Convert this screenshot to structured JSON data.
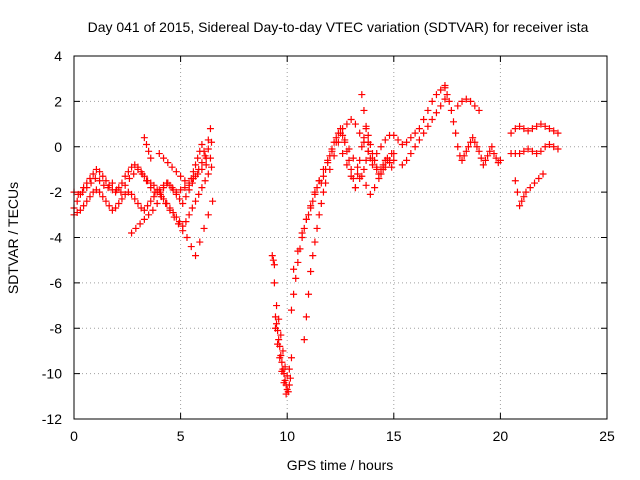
{
  "chart_data": {
    "type": "scatter",
    "title": "Day 041 of 2015, Sidereal Day-to-day VTEC variation (SDTVAR) for receiver ista",
    "xlabel": "GPS time / hours",
    "ylabel": "SDTVAR / TECUs",
    "xlim": [
      0,
      25
    ],
    "ylim": [
      -12,
      4
    ],
    "xticks": [
      0,
      5,
      10,
      15,
      20,
      25
    ],
    "yticks": [
      -12,
      -10,
      -8,
      -6,
      -4,
      -2,
      0,
      2,
      4
    ],
    "grid": true,
    "marker": "+",
    "color": "#ff0000",
    "series": [
      {
        "name": "SDTVAR",
        "x": [
          0.0,
          0.15,
          0.3,
          0.45,
          0.6,
          0.75,
          0.9,
          1.05,
          1.2,
          1.35,
          1.5,
          1.65,
          1.8,
          1.95,
          2.1,
          2.25,
          2.4,
          2.55,
          2.7,
          2.85,
          3.0,
          3.15,
          3.3,
          3.45,
          3.6,
          3.75,
          3.9,
          4.05,
          4.2,
          4.35,
          4.5,
          4.65,
          4.8,
          4.95,
          5.1,
          5.25,
          5.4,
          5.55,
          5.7,
          5.85,
          6.0,
          6.15,
          6.3,
          6.45,
          0.0,
          0.15,
          0.3,
          0.45,
          0.6,
          0.75,
          0.9,
          1.05,
          1.2,
          1.35,
          1.5,
          1.65,
          1.8,
          1.95,
          2.1,
          2.25,
          2.4,
          2.55,
          2.7,
          2.85,
          3.0,
          3.15,
          3.3,
          3.45,
          3.6,
          3.75,
          3.9,
          4.05,
          4.2,
          4.35,
          4.5,
          4.65,
          4.8,
          4.95,
          5.1,
          5.25,
          5.4,
          5.55,
          5.7,
          5.85,
          6.0,
          6.15,
          6.3,
          6.45,
          0.0,
          0.2,
          0.4,
          0.6,
          0.8,
          1.0,
          1.2,
          1.4,
          1.6,
          1.8,
          2.0,
          2.2,
          2.4,
          2.6,
          2.8,
          3.0,
          3.2,
          3.4,
          3.6,
          3.8,
          4.0,
          4.2,
          4.4,
          4.6,
          4.8,
          5.0,
          5.2,
          5.4,
          5.6,
          5.8,
          6.0,
          6.2,
          6.4,
          2.7,
          2.9,
          3.1,
          3.3,
          3.5,
          3.7,
          3.9,
          4.1,
          4.3,
          4.5,
          4.7,
          4.9,
          5.1,
          5.3,
          5.5,
          5.7,
          5.9,
          6.1,
          6.3,
          6.5,
          3.3,
          3.4,
          3.5,
          3.6,
          4.0,
          4.2,
          4.4,
          4.6,
          4.8,
          5.0,
          5.2,
          5.4,
          5.5,
          5.6,
          5.7,
          5.8,
          5.9,
          6.0,
          6.1,
          6.2,
          6.3,
          6.4,
          9.3,
          9.4,
          9.5,
          9.6,
          9.7,
          9.8,
          9.9,
          10.0,
          10.1,
          9.35,
          9.45,
          9.55,
          9.65,
          9.75,
          9.85,
          9.95,
          10.05,
          10.15,
          9.4,
          9.5,
          9.6,
          9.7,
          9.8,
          9.9,
          10.0,
          10.1,
          10.2,
          9.45,
          9.55,
          9.65,
          9.75,
          9.85,
          9.95,
          10.2,
          10.3,
          10.4,
          10.5,
          10.6,
          10.7,
          10.8,
          10.9,
          11.0,
          11.1,
          11.2,
          11.3,
          11.4,
          11.5,
          11.6,
          11.7,
          11.8,
          11.9,
          12.0,
          12.1,
          12.2,
          12.3,
          12.4,
          12.5,
          12.6,
          12.7,
          12.8,
          12.9,
          13.0,
          13.1,
          13.2,
          13.3,
          13.4,
          13.5,
          13.6,
          13.7,
          13.8,
          13.9,
          14.0,
          14.1,
          14.2,
          14.3,
          14.4,
          14.5,
          14.6,
          14.7,
          14.8,
          14.9,
          15.0,
          10.3,
          10.5,
          10.7,
          10.9,
          11.1,
          11.3,
          11.5,
          11.7,
          11.9,
          12.1,
          12.3,
          12.5,
          12.7,
          12.9,
          13.1,
          13.3,
          13.5,
          13.7,
          13.9,
          14.1,
          14.3,
          14.5,
          14.7,
          14.9,
          10.8,
          10.9,
          11.0,
          11.1,
          11.2,
          11.3,
          11.4,
          11.5,
          11.6,
          11.7,
          11.8,
          12.0,
          12.2,
          12.4,
          12.6,
          12.8,
          13.0,
          13.2,
          13.4,
          13.6,
          13.7,
          13.8,
          13.9,
          14.0,
          14.2,
          14.4,
          14.6,
          14.8,
          15.0,
          12.6,
          12.8,
          13.0,
          13.2,
          13.4,
          13.6,
          13.8,
          14.0,
          14.2,
          14.4,
          14.6,
          14.8,
          13.5,
          13.6,
          13.7,
          13.8,
          15.0,
          15.2,
          15.4,
          15.6,
          15.8,
          16.0,
          16.2,
          16.4,
          16.6,
          16.8,
          17.0,
          17.2,
          17.4,
          15.4,
          15.6,
          15.8,
          16.0,
          16.2,
          16.4,
          16.6,
          16.8,
          17.0,
          17.2,
          17.4,
          17.4,
          17.5,
          17.6,
          17.7,
          17.8,
          17.9,
          18.0,
          18.1,
          18.2,
          18.3,
          18.4,
          18.5,
          18.6,
          18.7,
          18.8,
          18.9,
          19.0,
          19.1,
          19.2,
          19.3,
          19.4,
          19.5,
          19.6,
          19.7,
          19.8,
          19.9,
          20.0,
          18.0,
          18.2,
          18.4,
          18.6,
          18.8,
          19.0,
          20.5,
          20.7,
          20.9,
          21.1,
          21.3,
          21.5,
          21.7,
          21.9,
          22.1,
          22.3,
          22.5,
          22.7,
          20.5,
          20.7,
          20.9,
          21.1,
          21.3,
          21.5,
          21.7,
          21.9,
          22.1,
          22.3,
          22.5,
          22.7,
          20.7,
          20.8,
          20.9,
          21.0,
          21.1,
          21.2,
          21.4,
          21.6,
          21.8,
          22.0
        ],
        "y": [
          -2.7,
          -2.4,
          -2.1,
          -1.8,
          -1.6,
          -1.4,
          -1.2,
          -1.0,
          -1.1,
          -1.3,
          -1.5,
          -1.7,
          -1.9,
          -2.0,
          -1.8,
          -1.6,
          -1.3,
          -1.1,
          -0.9,
          -0.8,
          -0.9,
          -1.1,
          -1.3,
          -1.5,
          -1.6,
          -1.7,
          -1.9,
          -2.0,
          -1.8,
          -1.6,
          -1.7,
          -1.9,
          -2.1,
          -2.3,
          -2.5,
          -2.2,
          -1.9,
          -1.6,
          -1.3,
          -1.0,
          -0.7,
          -0.4,
          -0.1,
          0.2,
          -3.0,
          -2.9,
          -2.8,
          -2.6,
          -2.4,
          -2.2,
          -2.0,
          -1.9,
          -2.0,
          -2.2,
          -2.4,
          -2.6,
          -2.8,
          -2.7,
          -2.5,
          -2.3,
          -2.1,
          -2.0,
          -2.1,
          -2.3,
          -2.5,
          -2.7,
          -2.8,
          -2.6,
          -2.4,
          -2.2,
          -2.0,
          -2.1,
          -2.3,
          -2.5,
          -2.7,
          -2.9,
          -3.1,
          -3.3,
          -3.5,
          -3.3,
          -3.0,
          -2.7,
          -2.4,
          -2.1,
          -1.8,
          -1.5,
          -1.2,
          -0.9,
          -2.0,
          -2.1,
          -2.0,
          -1.8,
          -1.6,
          -1.4,
          -1.5,
          -1.7,
          -1.8,
          -1.6,
          -1.9,
          -2.0,
          -1.7,
          -1.4,
          -1.2,
          -1.0,
          -1.2,
          -1.5,
          -1.8,
          -2.0,
          -1.9,
          -1.7,
          -1.6,
          -1.8,
          -2.0,
          -1.9,
          -1.8,
          -1.6,
          -1.4,
          -1.2,
          -1.0,
          -0.8,
          -0.5,
          -3.8,
          -3.6,
          -3.4,
          -3.2,
          -3.0,
          -2.8,
          -2.5,
          -2.2,
          -2.5,
          -2.8,
          -3.1,
          -3.4,
          -3.7,
          -4.0,
          -4.4,
          -4.8,
          -4.2,
          -3.6,
          -3.0,
          -2.4,
          0.4,
          0.1,
          -0.2,
          -0.5,
          -0.3,
          -0.5,
          -0.7,
          -0.9,
          -1.1,
          -1.3,
          -1.5,
          -1.7,
          -1.4,
          -1.1,
          -0.8,
          -0.5,
          -0.2,
          0.1,
          -0.2,
          -0.5,
          0.3,
          0.8,
          -4.8,
          -5.2,
          -7.8,
          -8.5,
          -9.2,
          -9.8,
          -10.3,
          -10.7,
          -10.5,
          -5.0,
          -7.5,
          -8.1,
          -8.8,
          -9.5,
          -10.0,
          -10.5,
          -10.8,
          -10.2,
          -6.0,
          -7.0,
          -7.6,
          -8.3,
          -9.0,
          -9.7,
          -10.1,
          -9.8,
          -9.3,
          -8.0,
          -8.7,
          -9.3,
          -9.9,
          -10.4,
          -10.9,
          -7.2,
          -6.5,
          -5.8,
          -5.1,
          -4.5,
          -4.0,
          -3.6,
          -3.2,
          -3.0,
          -2.7,
          -2.4,
          -2.1,
          -1.8,
          -1.5,
          -1.6,
          -1.3,
          -1.0,
          -0.7,
          -0.4,
          -0.1,
          0.2,
          0.4,
          0.6,
          0.8,
          0.5,
          0.2,
          -0.2,
          -0.6,
          -1.0,
          -1.4,
          -1.8,
          -1.2,
          -0.6,
          0.0,
          0.4,
          0.8,
          0.5,
          0.1,
          -0.3,
          -0.6,
          -0.9,
          -1.2,
          -1.0,
          -0.8,
          -0.6,
          -0.5,
          -0.7,
          -0.9,
          -0.6,
          -5.4,
          -4.6,
          -3.8,
          -3.2,
          -2.6,
          -2.0,
          -1.5,
          -1.0,
          -0.6,
          -0.2,
          0.2,
          0.6,
          0.3,
          -0.1,
          -0.5,
          -0.9,
          -1.3,
          -1.7,
          -2.1,
          -1.8,
          -1.4,
          -1.0,
          -0.6,
          -0.3,
          -8.5,
          -7.5,
          -6.5,
          -5.5,
          -4.8,
          -4.2,
          -3.6,
          -3.0,
          -2.5,
          -2.0,
          -1.6,
          -1.0,
          -0.4,
          0.2,
          -0.3,
          -0.8,
          -1.3,
          -1.8,
          -1.4,
          -1.0,
          -0.6,
          -0.2,
          -0.5,
          -0.8,
          -1.0,
          -1.2,
          -0.9,
          -0.6,
          -0.3,
          0.8,
          1.0,
          1.2,
          1.0,
          0.6,
          0.2,
          -0.2,
          -0.6,
          -0.3,
          0.0,
          0.3,
          0.5,
          2.3,
          1.6,
          0.9,
          0.2,
          0.5,
          0.3,
          0.1,
          0.2,
          0.4,
          0.6,
          0.8,
          1.2,
          1.6,
          2.0,
          2.3,
          2.5,
          2.7,
          -0.8,
          -0.6,
          -0.3,
          0.0,
          0.3,
          0.6,
          0.9,
          1.2,
          1.5,
          1.8,
          2.1,
          2.6,
          2.3,
          2.0,
          1.6,
          1.1,
          0.6,
          0.0,
          -0.4,
          -0.6,
          -0.4,
          -0.2,
          0.0,
          0.2,
          0.4,
          0.2,
          0.0,
          -0.2,
          -0.5,
          -0.8,
          -0.6,
          -0.4,
          -0.2,
          0.0,
          -0.3,
          -0.5,
          -0.7,
          -0.6,
          1.8,
          2.0,
          2.1,
          2.0,
          1.8,
          1.6,
          0.6,
          0.8,
          0.9,
          0.8,
          0.7,
          0.8,
          0.9,
          1.0,
          0.9,
          0.8,
          0.7,
          0.6,
          -0.3,
          -0.3,
          -0.3,
          -0.2,
          -0.1,
          -0.2,
          -0.3,
          -0.2,
          0.0,
          0.1,
          0.0,
          -0.1,
          -1.5,
          -2.0,
          -2.6,
          -2.4,
          -2.2,
          -2.0,
          -1.8,
          -1.6,
          -1.4,
          -1.2
        ]
      }
    ]
  }
}
